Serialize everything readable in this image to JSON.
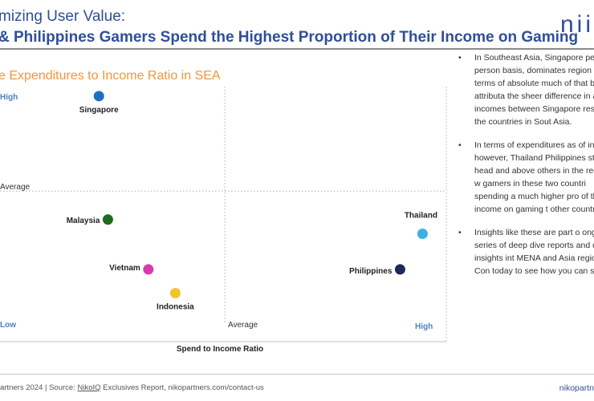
{
  "header": {
    "title_line1": "mizing User Value:",
    "title_line2": "& Philippines Gamers Spend the Highest Proportion of Their Income on Gaming",
    "logo": "nii"
  },
  "chart_title": "e Expenditures to Income Ratio in SEA",
  "chart_data": {
    "type": "scatter",
    "title": "e Expenditures to Income Ratio in SEA",
    "xlabel": "Spend to Income Ratio",
    "x_tick_labels": {
      "low": "Low",
      "average": "Average",
      "high": "High"
    },
    "y_tick_labels": {
      "low": "Low",
      "average": "Average",
      "high": "High"
    },
    "xlim": [
      0,
      10
    ],
    "ylim": [
      0,
      10
    ],
    "grid": "dotted quadrant lines at average",
    "average": {
      "x": 5,
      "y": 5.6
    },
    "points": [
      {
        "name": "Singapore",
        "x": 2.2,
        "y": 9.6,
        "color": "#1f6fbf"
      },
      {
        "name": "Malaysia",
        "x": 2.4,
        "y": 4.4,
        "color": "#1e6b1e"
      },
      {
        "name": "Vietnam",
        "x": 3.3,
        "y": 2.3,
        "color": "#d63ab0"
      },
      {
        "name": "Indonesia",
        "x": 3.9,
        "y": 1.3,
        "color": "#f5c232"
      },
      {
        "name": "Thailand",
        "x": 9.4,
        "y": 3.8,
        "color": "#3bb0e6"
      },
      {
        "name": "Philippines",
        "x": 8.9,
        "y": 2.3,
        "color": "#1a2a5a"
      }
    ]
  },
  "bullets": [
    "In Southeast Asia, Singapore per person basis, dominates region in terms of absolute much of that being attributa the sheer difference in avera incomes between Singapore rest of the countries in Sout Asia.",
    "In terms of expenditures as of income however, Thailand Philippines stand head and above others in the region w gamers in these two countri spending a much higher pro of their income on gaming t other countries.",
    "Insights like these are part o ongoing series of deep dive reports and data insights int MENA and Asia regions. Con today to see how you can su"
  ],
  "footer": {
    "copyright": "artners 2024  |  Source: ",
    "source_link": "NikoIQ",
    "source_rest": " Exclusives Report,  nikopartners.com/contact-us",
    "brand": "nikopartn"
  }
}
